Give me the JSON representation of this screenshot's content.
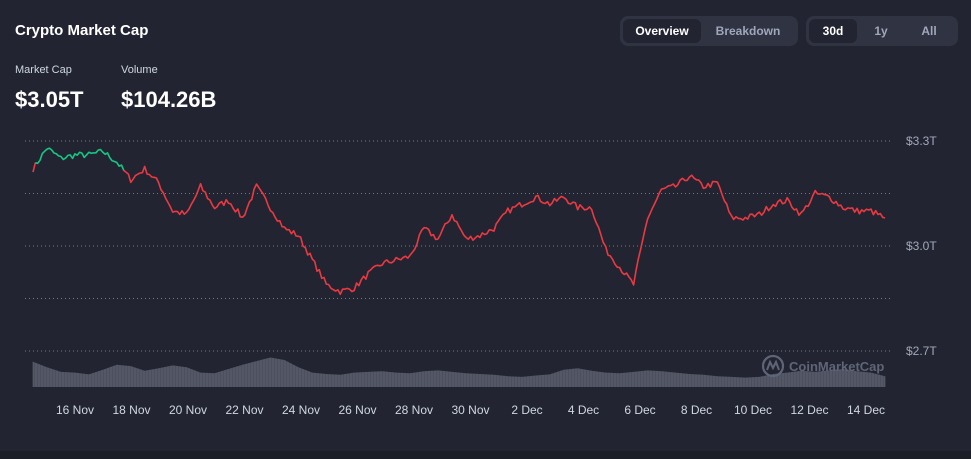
{
  "header": {
    "title": "Crypto Market Cap",
    "view_tabs": [
      {
        "label": "Overview",
        "active": true
      },
      {
        "label": "Breakdown",
        "active": false
      }
    ],
    "range_tabs": [
      {
        "label": "30d",
        "active": true
      },
      {
        "label": "1y",
        "active": false
      },
      {
        "label": "All",
        "active": false
      }
    ]
  },
  "stats": {
    "market_cap_label": "Market Cap",
    "market_cap_value": "$3.05T",
    "volume_label": "Volume",
    "volume_value": "$104.26B"
  },
  "watermark": "CoinMarketCap",
  "colors": {
    "background": "#222531",
    "up": "#16c784",
    "down": "#ea3943",
    "volume": "#5b5f6e",
    "grid": "#8a8f9e"
  },
  "chart_data": {
    "type": "line",
    "yticks": [
      "$3.3T",
      "$3.0T",
      "$2.7T"
    ],
    "ytick_values": [
      3.3,
      3.0,
      2.7
    ],
    "ylim": [
      2.7,
      3.3
    ],
    "xticks": [
      "16 Nov",
      "18 Nov",
      "20 Nov",
      "22 Nov",
      "24 Nov",
      "26 Nov",
      "28 Nov",
      "30 Nov",
      "2 Dec",
      "4 Dec",
      "6 Dec",
      "8 Dec",
      "10 Dec",
      "12 Dec",
      "14 Dec"
    ],
    "grid": true,
    "baseline": 3.22,
    "series": [
      {
        "x": [
          "14 Nov",
          "14.5 Nov",
          "15 Nov",
          "15.5 Nov",
          "16 Nov",
          "16.5 Nov",
          "17 Nov",
          "17.5 Nov",
          "18 Nov",
          "18.5 Nov",
          "19 Nov",
          "19.5 Nov",
          "20 Nov",
          "20.5 Nov",
          "21 Nov",
          "21.5 Nov",
          "22 Nov",
          "22.5 Nov",
          "23 Nov",
          "23.5 Nov",
          "24 Nov",
          "24.5 Nov",
          "25 Nov",
          "25.5 Nov",
          "26 Nov",
          "26.5 Nov",
          "27 Nov",
          "27.5 Nov",
          "28 Nov",
          "28.5 Nov",
          "29 Nov",
          "29.5 Nov",
          "30 Nov",
          "30.5 Nov",
          "1 Dec",
          "1.5 Dec",
          "2 Dec",
          "2.5 Dec",
          "3 Dec",
          "3.5 Dec",
          "4 Dec",
          "4.5 Dec",
          "5 Dec",
          "5.5 Dec",
          "6 Dec",
          "6.5 Dec",
          "7 Dec",
          "7.5 Dec",
          "8 Dec",
          "8.5 Dec",
          "9 Dec",
          "9.5 Dec",
          "10 Dec",
          "10.5 Dec",
          "11 Dec",
          "11.5 Dec",
          "12 Dec",
          "12.5 Dec",
          "13 Dec",
          "13.5 Dec",
          "14 Dec",
          "14.2 Dec"
        ],
        "values": [
          3.22,
          3.28,
          3.25,
          3.26,
          3.26,
          3.27,
          3.24,
          3.19,
          3.22,
          3.18,
          3.1,
          3.09,
          3.17,
          3.11,
          3.13,
          3.08,
          3.17,
          3.11,
          3.05,
          3.03,
          2.96,
          2.89,
          2.87,
          2.88,
          2.92,
          2.95,
          2.96,
          2.97,
          3.05,
          3.02,
          3.09,
          3.02,
          3.03,
          3.05,
          3.1,
          3.12,
          3.14,
          3.12,
          3.14,
          3.11,
          3.11,
          2.99,
          2.94,
          2.89,
          3.08,
          3.16,
          3.17,
          3.2,
          3.17,
          3.18,
          3.08,
          3.08,
          3.09,
          3.12,
          3.13,
          3.09,
          3.15,
          3.14,
          3.11,
          3.1,
          3.1,
          3.08
        ]
      }
    ],
    "volume": [
      0.7,
      0.55,
      0.42,
      0.4,
      0.35,
      0.48,
      0.62,
      0.58,
      0.45,
      0.52,
      0.6,
      0.55,
      0.4,
      0.38,
      0.5,
      0.62,
      0.72,
      0.82,
      0.75,
      0.55,
      0.4,
      0.36,
      0.34,
      0.4,
      0.42,
      0.44,
      0.4,
      0.38,
      0.44,
      0.46,
      0.42,
      0.38,
      0.36,
      0.34,
      0.3,
      0.28,
      0.32,
      0.35,
      0.48,
      0.52,
      0.45,
      0.4,
      0.38,
      0.42,
      0.46,
      0.44,
      0.4,
      0.36,
      0.34,
      0.3,
      0.28,
      0.26,
      0.28,
      0.36,
      0.4,
      0.45,
      0.42,
      0.46,
      0.5,
      0.44,
      0.4,
      0.3
    ]
  }
}
